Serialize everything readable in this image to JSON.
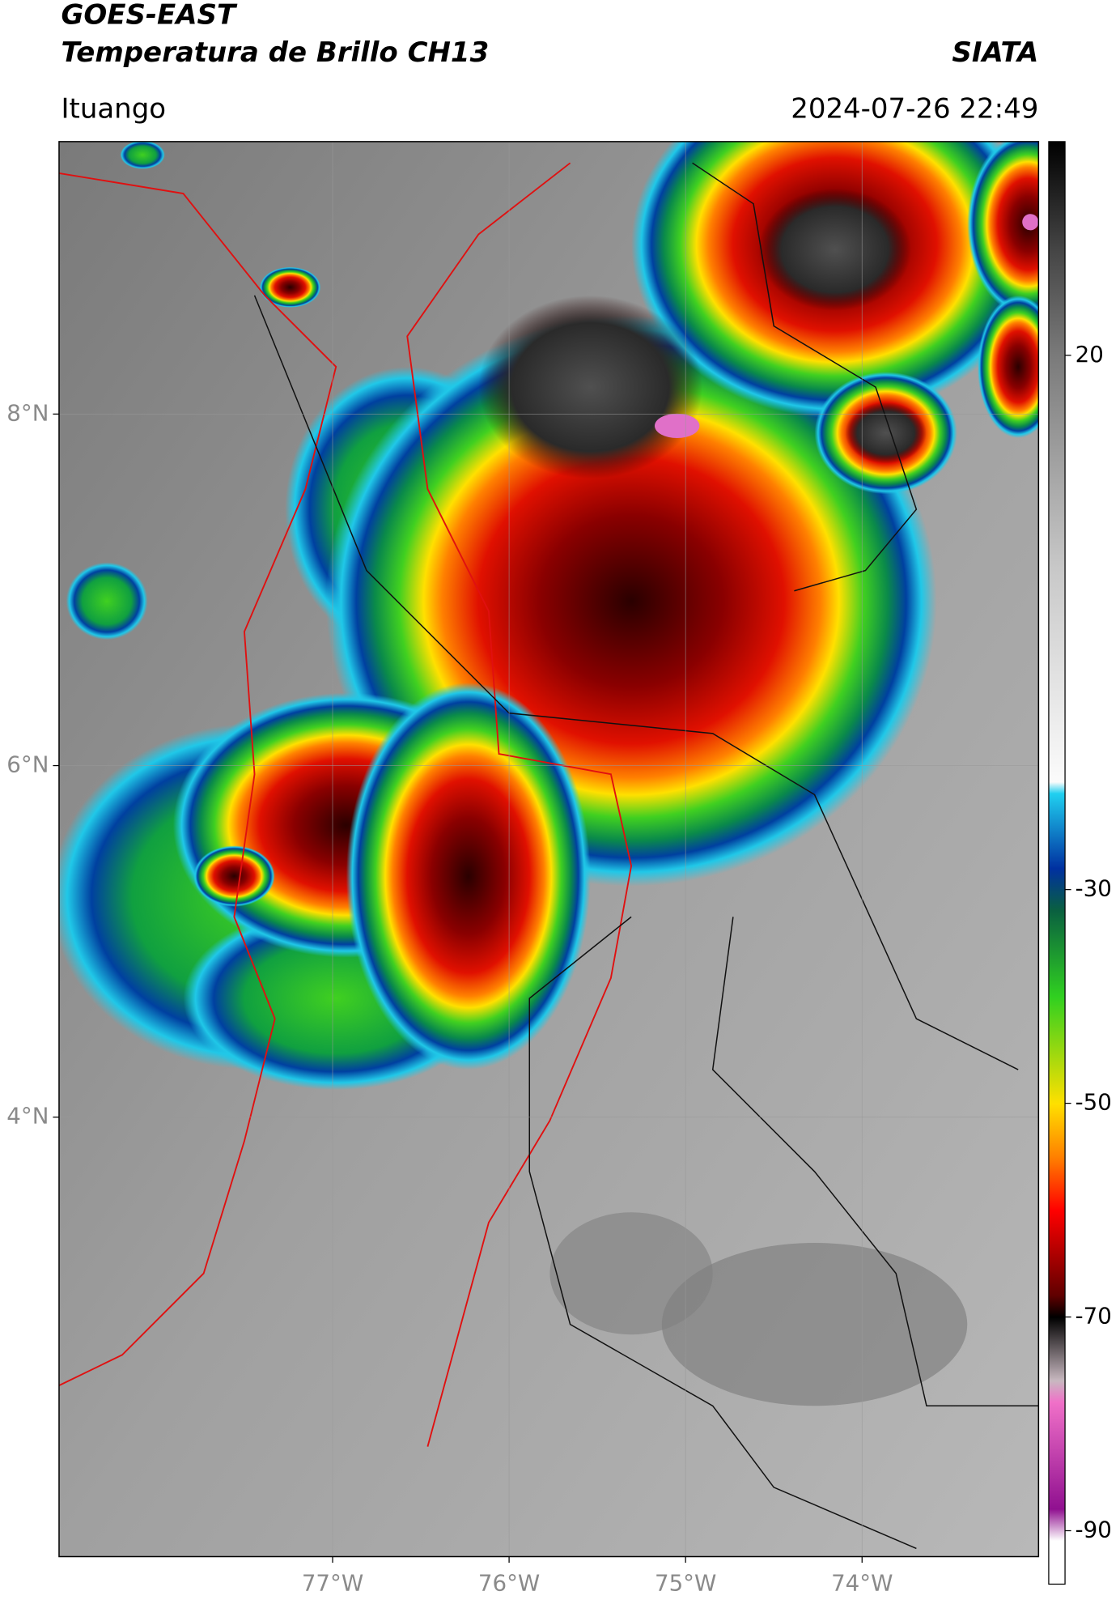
{
  "header": {
    "title": "GOES-EAST",
    "subtitle": "Temperatura de Brillo CH13",
    "source": "SIATA",
    "location": "Ituango",
    "datetime": "2024-07-26 22:49"
  },
  "map": {
    "lon_range": [
      -78.55,
      -73
    ],
    "lat_range": [
      1.5,
      9.55
    ],
    "lat_ticks": [
      {
        "value": 8,
        "label": "8°N"
      },
      {
        "value": 6,
        "label": "6°N"
      },
      {
        "value": 4,
        "label": "4°N"
      }
    ],
    "lon_ticks": [
      {
        "value": -77,
        "label": "77°W"
      },
      {
        "value": -76,
        "label": "76°W"
      },
      {
        "value": -75,
        "label": "75°W"
      },
      {
        "value": -74,
        "label": "74°W"
      }
    ]
  },
  "colorbar": {
    "range": [
      -95,
      40
    ],
    "ticks": [
      20,
      -30,
      -50,
      -70,
      -90
    ]
  }
}
